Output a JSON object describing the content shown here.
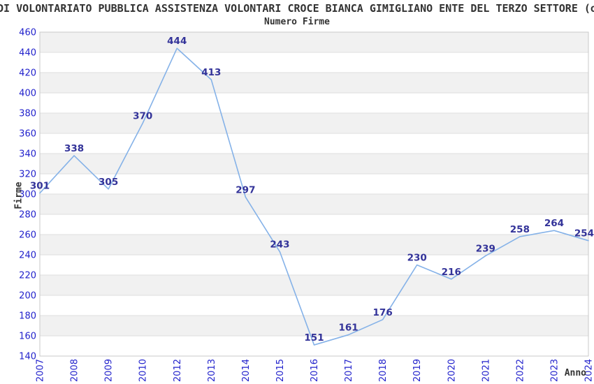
{
  "title": "DI VOLONTARIATO PUBBLICA ASSISTENZA VOLONTARI CROCE BIANCA GIMIGLIANO ENTE DEL TERZO SETTORE (o",
  "subtitle": "Numero Firme",
  "chart_data": {
    "type": "line",
    "title": "Numero Firme",
    "xlabel": "Anno",
    "ylabel": "Firme",
    "categories": [
      "2007",
      "2008",
      "2009",
      "2010",
      "2012",
      "2013",
      "2014",
      "2015",
      "2016",
      "2017",
      "2018",
      "2019",
      "2020",
      "2021",
      "2022",
      "2023",
      "2024"
    ],
    "values": [
      301,
      338,
      305,
      370,
      444,
      413,
      297,
      243,
      151,
      161,
      176,
      230,
      216,
      239,
      258,
      264,
      254
    ],
    "ylim": [
      140,
      460
    ],
    "ytick_step": 20,
    "grid": "horizontal-gridlines-with-alternating-bands",
    "legend": "none",
    "markers": "none",
    "point_labels": "values-above-points",
    "x_tick_rotation_deg": -90,
    "colors": {
      "line": "#85b2e8",
      "point_label": "#333399",
      "tick_label": "#2222cc",
      "band": "#f1f1f1",
      "grid": "#dedede",
      "border": "#c9c9c9",
      "title_text": "#333333"
    }
  }
}
